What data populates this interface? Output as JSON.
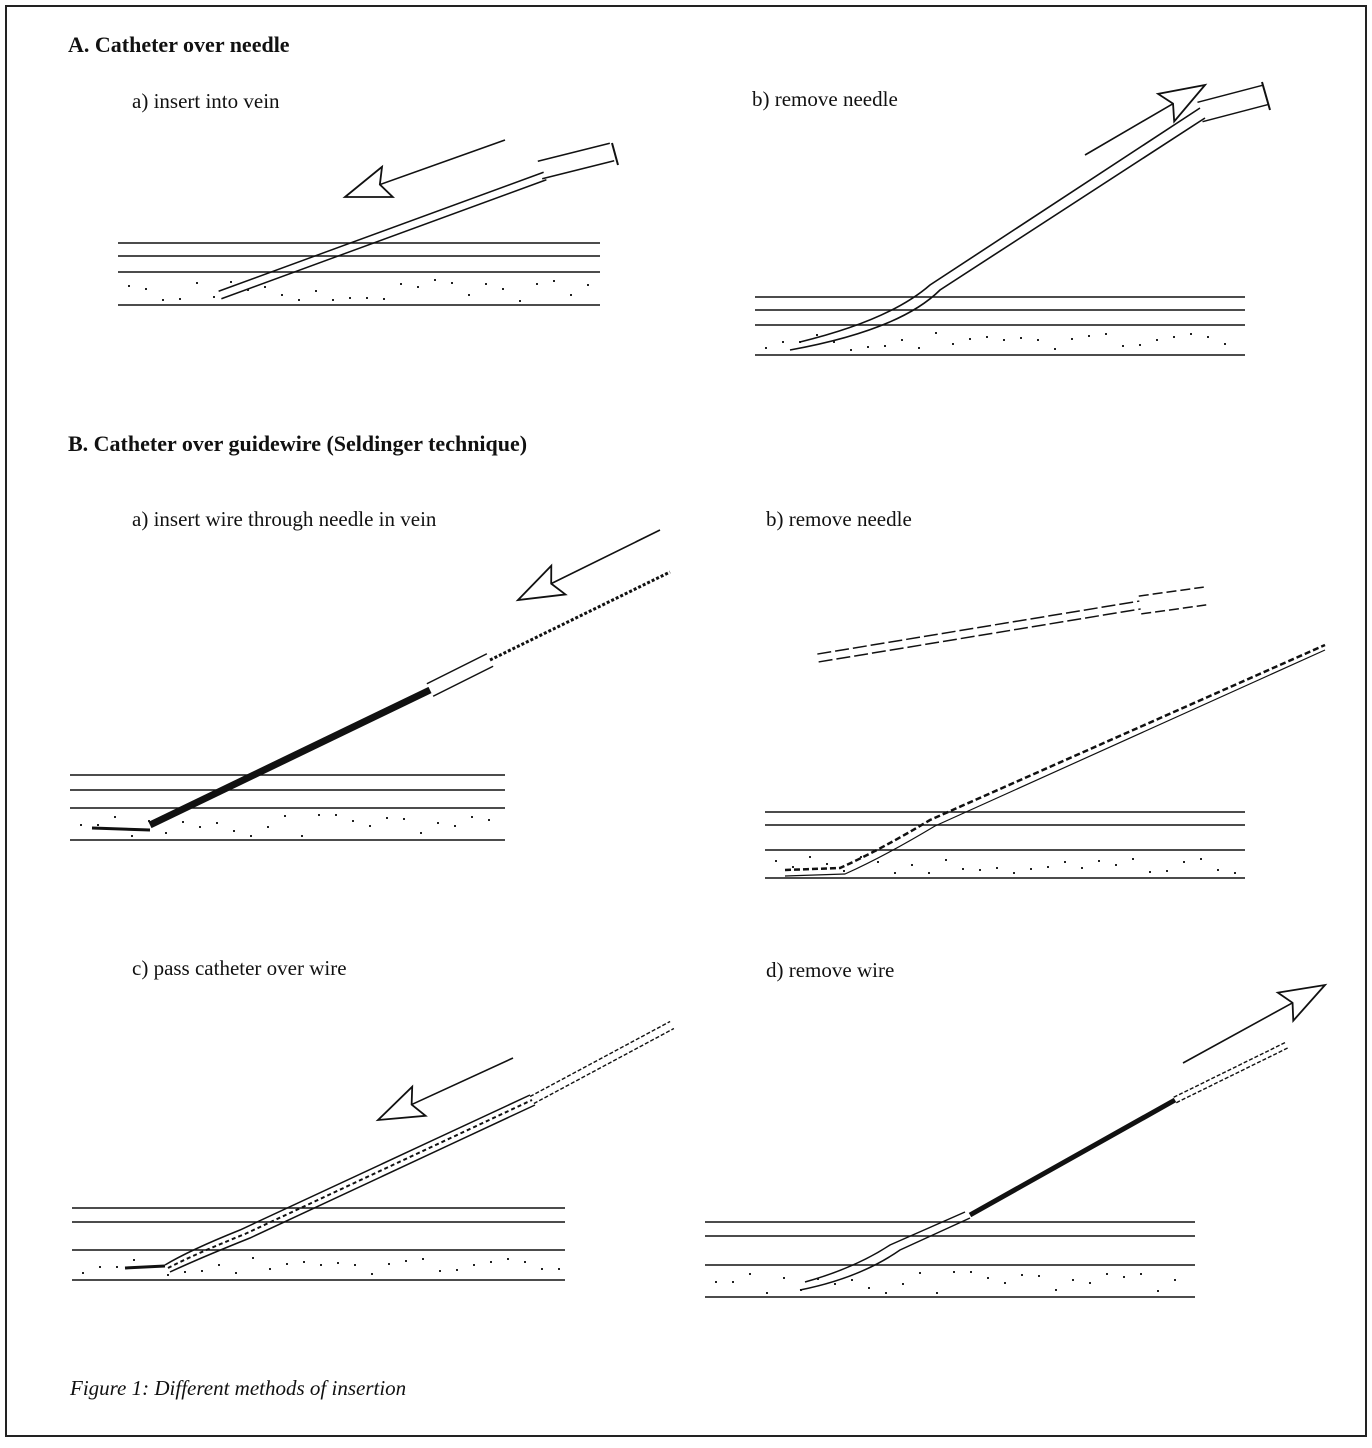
{
  "sections": [
    {
      "title": "A. Catheter over needle",
      "panels": [
        {
          "label": "a) insert into vein"
        },
        {
          "label": "b) remove needle"
        }
      ]
    },
    {
      "title": "B. Catheter over guidewire (Seldinger technique)",
      "panels": [
        {
          "label": "a) insert wire through needle in vein"
        },
        {
          "label": "b) remove needle"
        },
        {
          "label": "c) pass catheter over wire"
        },
        {
          "label": "d) remove wire"
        }
      ]
    }
  ],
  "caption": "Figure 1: Different methods of insertion"
}
